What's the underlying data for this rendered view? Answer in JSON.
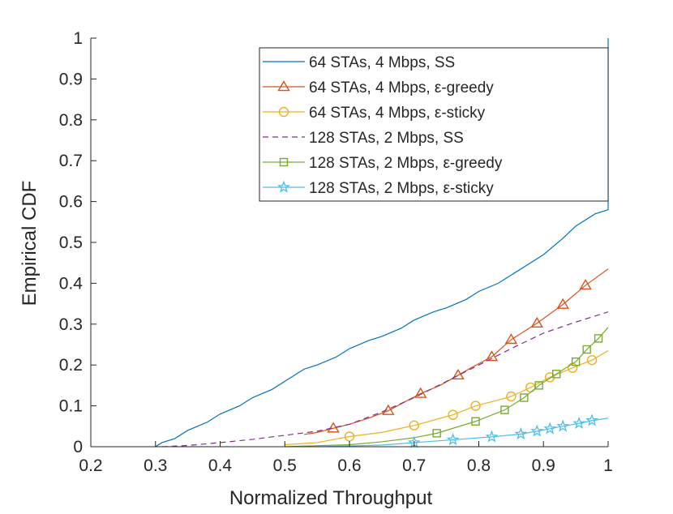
{
  "chart_data": {
    "type": "line",
    "title": "",
    "xlabel": "Normalized Throughput",
    "ylabel": "Empirical CDF",
    "xlim": [
      0.2,
      1.0
    ],
    "ylim": [
      0.0,
      1.0
    ],
    "x_ticks": [
      "0.2",
      "0.3",
      "0.4",
      "0.5",
      "0.6",
      "0.7",
      "0.8",
      "0.9",
      "1"
    ],
    "y_ticks": [
      "0",
      "0.1",
      "0.2",
      "0.3",
      "0.4",
      "0.5",
      "0.6",
      "0.7",
      "0.8",
      "0.9",
      "1"
    ],
    "grid": false,
    "legend_position": "top-right",
    "series": [
      {
        "name": "64 STAs, 4 Mbps, SS",
        "color": "#0072BD",
        "style": "solid",
        "marker": "none",
        "x": [
          0.3,
          0.31,
          0.33,
          0.35,
          0.38,
          0.4,
          0.43,
          0.45,
          0.48,
          0.5,
          0.52,
          0.53,
          0.55,
          0.58,
          0.6,
          0.63,
          0.65,
          0.68,
          0.7,
          0.73,
          0.75,
          0.78,
          0.8,
          0.83,
          0.85,
          0.88,
          0.9,
          0.93,
          0.95,
          0.98,
          1.0,
          1.0
        ],
        "y": [
          0.0,
          0.01,
          0.02,
          0.04,
          0.06,
          0.08,
          0.1,
          0.12,
          0.14,
          0.16,
          0.18,
          0.19,
          0.2,
          0.22,
          0.24,
          0.26,
          0.27,
          0.29,
          0.31,
          0.33,
          0.34,
          0.36,
          0.38,
          0.4,
          0.42,
          0.45,
          0.47,
          0.51,
          0.54,
          0.57,
          0.58,
          1.0
        ]
      },
      {
        "name": "64 STAs, 4 Mbps, ε-greedy",
        "color": "#D95319",
        "style": "solid",
        "marker": "triangle",
        "x": [
          0.53,
          0.55,
          0.575,
          0.6,
          0.63,
          0.66,
          0.68,
          0.71,
          0.74,
          0.768,
          0.79,
          0.82,
          0.85,
          0.89,
          0.93,
          0.965,
          1.0
        ],
        "y": [
          0.03,
          0.035,
          0.045,
          0.055,
          0.07,
          0.088,
          0.105,
          0.13,
          0.15,
          0.175,
          0.195,
          0.22,
          0.262,
          0.302,
          0.348,
          0.395,
          0.435
        ],
        "marker_x": [
          0.575,
          0.66,
          0.71,
          0.768,
          0.82,
          0.85,
          0.89,
          0.93,
          0.965
        ],
        "marker_y": [
          0.045,
          0.088,
          0.13,
          0.175,
          0.22,
          0.262,
          0.302,
          0.348,
          0.395
        ]
      },
      {
        "name": "64 STAs, 4 Mbps, ε-sticky",
        "color": "#EDB120",
        "style": "solid",
        "marker": "circle",
        "x": [
          0.5,
          0.55,
          0.6,
          0.65,
          0.7,
          0.73,
          0.76,
          0.795,
          0.82,
          0.85,
          0.88,
          0.91,
          0.945,
          0.975,
          1.0
        ],
        "y": [
          0.005,
          0.01,
          0.025,
          0.035,
          0.052,
          0.065,
          0.078,
          0.1,
          0.11,
          0.123,
          0.145,
          0.17,
          0.193,
          0.212,
          0.235
        ],
        "marker_x": [
          0.6,
          0.7,
          0.76,
          0.795,
          0.85,
          0.88,
          0.91,
          0.945,
          0.975
        ],
        "marker_y": [
          0.025,
          0.052,
          0.078,
          0.1,
          0.123,
          0.145,
          0.17,
          0.193,
          0.212
        ]
      },
      {
        "name": "128 STAs, 2 Mbps, SS",
        "color": "#7E2F8E",
        "style": "dashed",
        "marker": "none",
        "x": [
          0.31,
          0.35,
          0.4,
          0.45,
          0.5,
          0.55,
          0.6,
          0.65,
          0.7,
          0.75,
          0.8,
          0.85,
          0.9,
          0.95,
          1.0
        ],
        "y": [
          0.0,
          0.003,
          0.01,
          0.018,
          0.028,
          0.038,
          0.055,
          0.085,
          0.12,
          0.16,
          0.2,
          0.24,
          0.278,
          0.305,
          0.33
        ]
      },
      {
        "name": "128 STAs, 2 Mbps, ε-greedy",
        "color": "#77AC30",
        "style": "solid",
        "marker": "square",
        "x": [
          0.5,
          0.6,
          0.65,
          0.7,
          0.735,
          0.795,
          0.84,
          0.87,
          0.893,
          0.92,
          0.95,
          0.967,
          0.985,
          1.0
        ],
        "y": [
          0.0,
          0.005,
          0.012,
          0.022,
          0.033,
          0.062,
          0.09,
          0.12,
          0.15,
          0.178,
          0.208,
          0.238,
          0.265,
          0.292
        ],
        "marker_x": [
          0.735,
          0.795,
          0.84,
          0.87,
          0.893,
          0.92,
          0.95,
          0.967,
          0.985
        ],
        "marker_y": [
          0.033,
          0.062,
          0.09,
          0.12,
          0.15,
          0.178,
          0.208,
          0.238,
          0.265
        ]
      },
      {
        "name": "128 STAs, 2 Mbps, ε-sticky",
        "color": "#4DBEEE",
        "style": "solid",
        "marker": "pentagram",
        "x": [
          0.55,
          0.65,
          0.7,
          0.76,
          0.82,
          0.865,
          0.89,
          0.91,
          0.93,
          0.955,
          0.975,
          1.0
        ],
        "y": [
          0.0,
          0.004,
          0.01,
          0.017,
          0.024,
          0.031,
          0.038,
          0.044,
          0.05,
          0.057,
          0.064,
          0.07
        ],
        "marker_x": [
          0.7,
          0.76,
          0.82,
          0.865,
          0.89,
          0.91,
          0.93,
          0.955,
          0.975
        ],
        "marker_y": [
          0.01,
          0.017,
          0.024,
          0.031,
          0.038,
          0.044,
          0.05,
          0.057,
          0.064
        ]
      }
    ]
  }
}
